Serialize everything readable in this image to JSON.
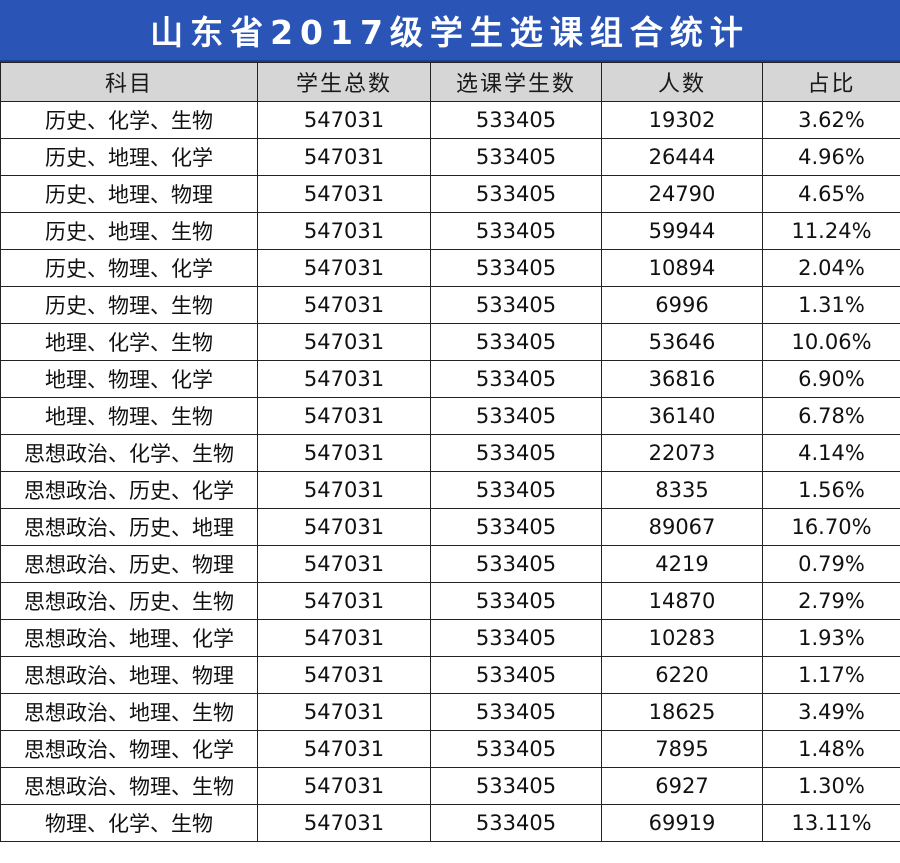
{
  "title": "山东省2017级学生选课组合统计",
  "headers": [
    "科目",
    "学生总数",
    "选课学生数",
    "人数",
    "占比"
  ],
  "rows": [
    [
      "历史、化学、生物",
      "547031",
      "533405",
      "19302",
      "3.62%"
    ],
    [
      "历史、地理、化学",
      "547031",
      "533405",
      "26444",
      "4.96%"
    ],
    [
      "历史、地理、物理",
      "547031",
      "533405",
      "24790",
      "4.65%"
    ],
    [
      "历史、地理、生物",
      "547031",
      "533405",
      "59944",
      "11.24%"
    ],
    [
      "历史、物理、化学",
      "547031",
      "533405",
      "10894",
      "2.04%"
    ],
    [
      "历史、物理、生物",
      "547031",
      "533405",
      "6996",
      "1.31%"
    ],
    [
      "地理、化学、生物",
      "547031",
      "533405",
      "53646",
      "10.06%"
    ],
    [
      "地理、物理、化学",
      "547031",
      "533405",
      "36816",
      "6.90%"
    ],
    [
      "地理、物理、生物",
      "547031",
      "533405",
      "36140",
      "6.78%"
    ],
    [
      "思想政治、化学、生物",
      "547031",
      "533405",
      "22073",
      "4.14%"
    ],
    [
      "思想政治、历史、化学",
      "547031",
      "533405",
      "8335",
      "1.56%"
    ],
    [
      "思想政治、历史、地理",
      "547031",
      "533405",
      "89067",
      "16.70%"
    ],
    [
      "思想政治、历史、物理",
      "547031",
      "533405",
      "4219",
      "0.79%"
    ],
    [
      "思想政治、历史、生物",
      "547031",
      "533405",
      "14870",
      "2.79%"
    ],
    [
      "思想政治、地理、化学",
      "547031",
      "533405",
      "10283",
      "1.93%"
    ],
    [
      "思想政治、地理、物理",
      "547031",
      "533405",
      "6220",
      "1.17%"
    ],
    [
      "思想政治、地理、生物",
      "547031",
      "533405",
      "18625",
      "3.49%"
    ],
    [
      "思想政治、物理、化学",
      "547031",
      "533405",
      "7895",
      "1.48%"
    ],
    [
      "思想政治、物理、生物",
      "547031",
      "533405",
      "6927",
      "1.30%"
    ],
    [
      "物理、化学、生物",
      "547031",
      "533405",
      "69919",
      "13.11%"
    ]
  ],
  "colors": {
    "banner": "#2a55b6",
    "header_bg": "#d6d6d6",
    "border": "#222222"
  }
}
